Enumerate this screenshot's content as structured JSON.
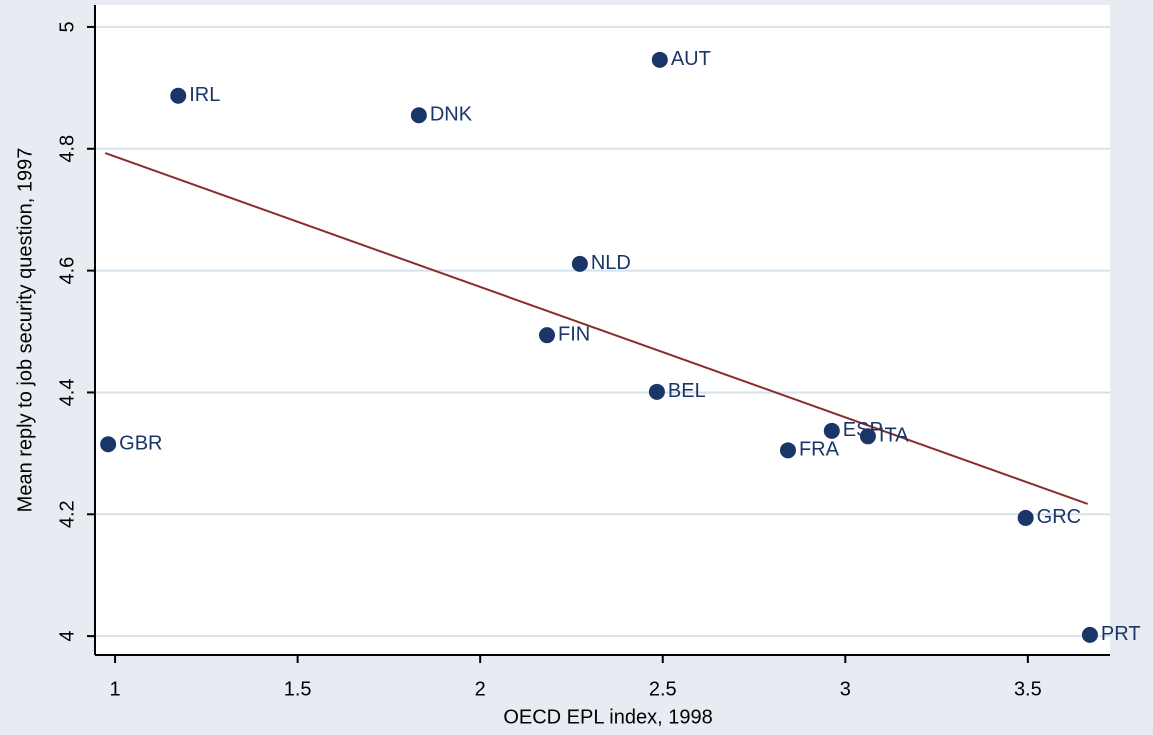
{
  "chart_data": {
    "type": "scatter",
    "x_label": "OECD EPL index, 1998",
    "y_label": "Mean reply to job security question, 1997",
    "points": {
      "labels": [
        "GBR",
        "IRL",
        "DNK",
        "AUT",
        "NLD",
        "FIN",
        "BEL",
        "FRA",
        "ESP",
        "ITA",
        "GRC",
        "PRT"
      ],
      "x": [
        0.981,
        1.173,
        1.832,
        2.492,
        2.273,
        2.183,
        2.484,
        2.843,
        2.963,
        3.062,
        3.494,
        3.67
      ],
      "y": [
        4.315,
        4.887,
        4.855,
        4.946,
        4.611,
        4.494,
        4.401,
        4.305,
        4.337,
        4.328,
        4.194,
        4.002
      ],
      "color": "#1a3668"
    },
    "fit_line": {
      "x": [
        0.973,
        3.664
      ],
      "y": [
        4.793,
        4.217
      ],
      "color": "#8b2d2d"
    },
    "xlim": [
      0.945,
      3.725
    ],
    "ylim": [
      3.969,
      5.036
    ],
    "xticks": [
      1,
      1.5,
      2,
      2.5,
      3,
      3.5
    ],
    "yticks": [
      4,
      4.2,
      4.4,
      4.6,
      4.8,
      5
    ],
    "grid": true
  }
}
